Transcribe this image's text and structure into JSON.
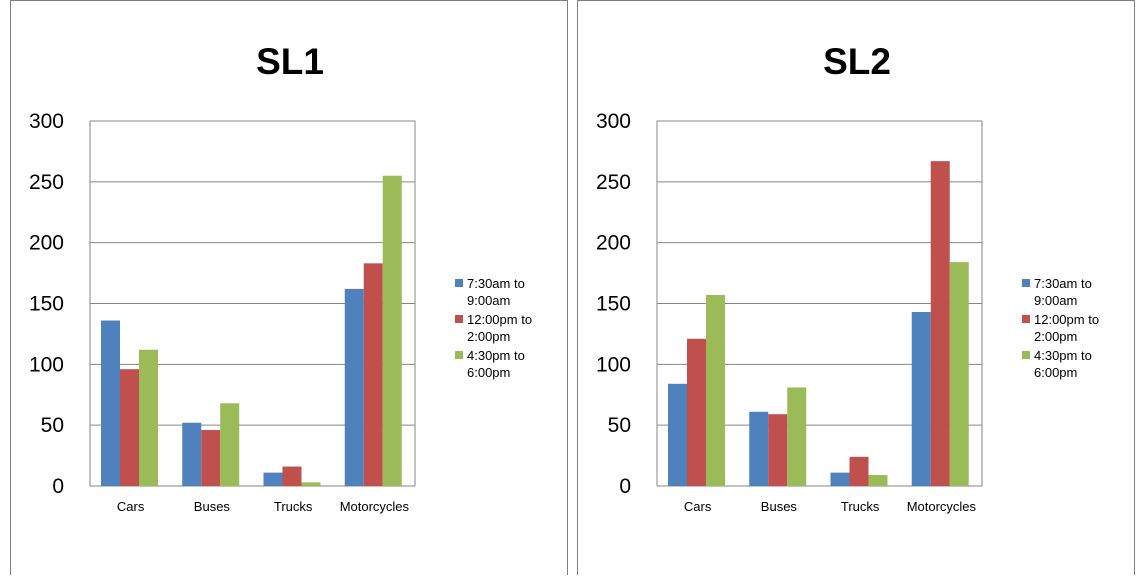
{
  "chart_data": [
    {
      "type": "bar",
      "title": "SL1",
      "categories": [
        "Cars",
        "Buses",
        "Trucks",
        "Motorcycles"
      ],
      "series": [
        {
          "name": "7:30am to 9:00am",
          "values": [
            136,
            52,
            11,
            162
          ],
          "color": "#4f81bd"
        },
        {
          "name": "12:00pm to 2:00pm",
          "values": [
            96,
            46,
            16,
            183
          ],
          "color": "#c0504d"
        },
        {
          "name": "4:30pm to 6:00pm",
          "values": [
            112,
            68,
            3,
            255
          ],
          "color": "#9bbb59"
        }
      ],
      "ylim": [
        0,
        300
      ],
      "yticks": [
        0,
        50,
        100,
        150,
        200,
        250,
        300
      ],
      "grid": true,
      "legend": "right",
      "xlabel": "",
      "ylabel": ""
    },
    {
      "type": "bar",
      "title": "SL2",
      "categories": [
        "Cars",
        "Buses",
        "Trucks",
        "Motorcycles"
      ],
      "series": [
        {
          "name": "7:30am to 9:00am",
          "values": [
            84,
            61,
            11,
            143
          ],
          "color": "#4f81bd"
        },
        {
          "name": "12:00pm to 2:00pm",
          "values": [
            121,
            59,
            24,
            267
          ],
          "color": "#c0504d"
        },
        {
          "name": "4:30pm to 6:00pm",
          "values": [
            157,
            81,
            9,
            184
          ],
          "color": "#9bbb59"
        }
      ],
      "ylim": [
        0,
        300
      ],
      "yticks": [
        0,
        50,
        100,
        150,
        200,
        250,
        300
      ],
      "grid": true,
      "legend": "right",
      "xlabel": "",
      "ylabel": ""
    }
  ]
}
